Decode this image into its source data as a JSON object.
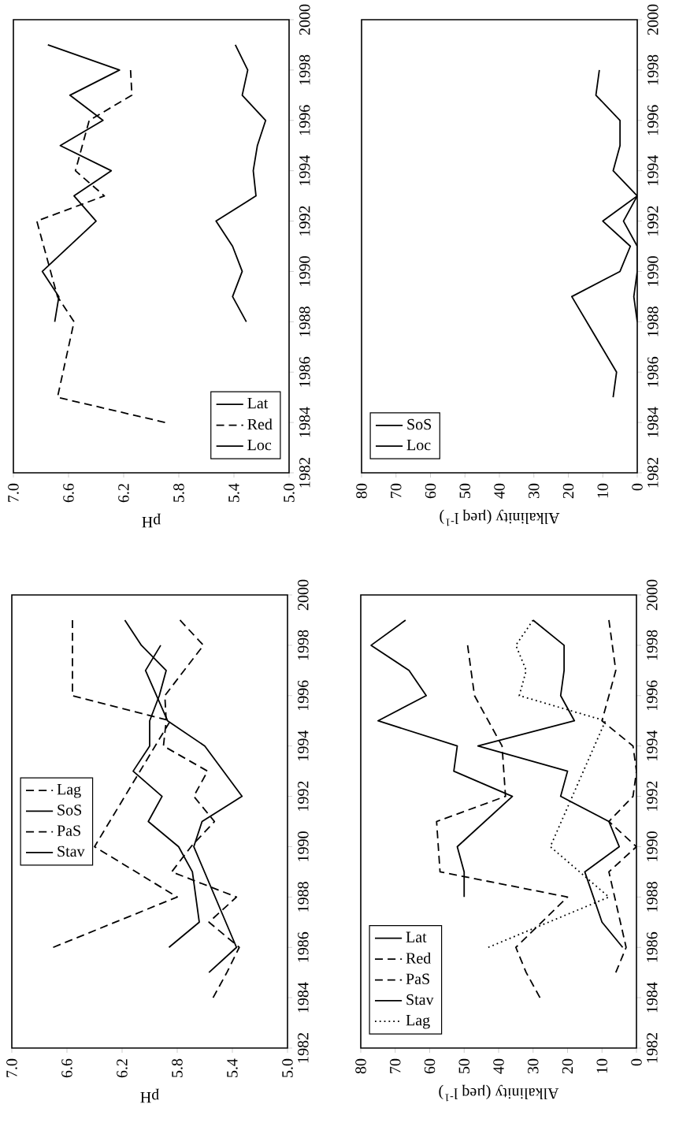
{
  "chart_data": [
    {
      "type": "line",
      "xlabel": "pH",
      "xlim": [
        7.0,
        5.0
      ],
      "xticks": [
        {
          "value": 7.0,
          "label": "7.0"
        },
        {
          "value": 6.6,
          "label": "6.6"
        },
        {
          "value": 6.2,
          "label": "6.2"
        },
        {
          "value": 5.8,
          "label": "5.8"
        },
        {
          "value": 5.4,
          "label": "5.4"
        },
        {
          "value": 5.0,
          "label": "5.0"
        }
      ],
      "ylim": [
        1982,
        2000
      ],
      "yticks": [
        {
          "value": 1982,
          "label": "1982"
        },
        {
          "value": 1984,
          "label": "1984"
        },
        {
          "value": 1986,
          "label": "1986"
        },
        {
          "value": 1988,
          "label": "1988"
        },
        {
          "value": 1990,
          "label": "1990"
        },
        {
          "value": 1992,
          "label": "1992"
        },
        {
          "value": 1994,
          "label": "1994"
        },
        {
          "value": 1996,
          "label": "1996"
        },
        {
          "value": 1998,
          "label": "1998"
        },
        {
          "value": 2000,
          "label": "2000"
        }
      ],
      "grid": false,
      "legend": "bottom right",
      "marker": "none",
      "series": [
        {
          "name": "Lat",
          "color": "#000000",
          "line_style": "solid",
          "x": [
            6.7,
            6.67,
            6.79,
            6.4,
            6.56,
            6.29,
            6.66,
            6.35,
            6.59,
            6.23,
            6.75
          ],
          "values": [
            1988,
            1989,
            1990,
            1992,
            1993,
            1994,
            1995,
            1996,
            1997,
            1998,
            1999
          ]
        },
        {
          "name": "Red",
          "color": "#000000",
          "line_style": "dashed",
          "x": [
            5.9,
            6.68,
            6.56,
            6.68,
            6.83,
            6.34,
            6.55,
            6.5,
            6.45,
            6.14,
            6.15
          ],
          "values": [
            1984,
            1985,
            1988,
            1989,
            1992,
            1993,
            1994,
            1995,
            1996,
            1997,
            1998
          ]
        },
        {
          "name": "Loc",
          "color": "#000000",
          "line_style": "solid",
          "x": [
            5.31,
            5.41,
            5.34,
            5.41,
            5.53,
            5.24,
            5.26,
            5.23,
            5.17,
            5.34,
            5.3,
            5.39
          ],
          "values": [
            1988,
            1989,
            1990,
            1991,
            1992,
            1993,
            1994,
            1995,
            1996,
            1997,
            1998,
            1999
          ]
        }
      ]
    },
    {
      "type": "line",
      "xlabel": "Alkalinity (µeq l$^{-1}$)",
      "xlim": [
        80,
        0
      ],
      "xticks": [
        {
          "value": 80,
          "label": "80"
        },
        {
          "value": 70,
          "label": "70"
        },
        {
          "value": 60,
          "label": "60"
        },
        {
          "value": 50,
          "label": "50"
        },
        {
          "value": 40,
          "label": "40"
        },
        {
          "value": 30,
          "label": "30"
        },
        {
          "value": 20,
          "label": "20"
        },
        {
          "value": 10,
          "label": "10"
        },
        {
          "value": 0,
          "label": "0"
        }
      ],
      "ylim": [
        1982,
        2000
      ],
      "yticks": [
        {
          "value": 1982,
          "label": "1982"
        },
        {
          "value": 1984,
          "label": "1984"
        },
        {
          "value": 1986,
          "label": "1986"
        },
        {
          "value": 1988,
          "label": "1988"
        },
        {
          "value": 1990,
          "label": "1990"
        },
        {
          "value": 1992,
          "label": "1992"
        },
        {
          "value": 1994,
          "label": "1994"
        },
        {
          "value": 1996,
          "label": "1996"
        },
        {
          "value": 1998,
          "label": "1998"
        },
        {
          "value": 2000,
          "label": "2000"
        }
      ],
      "grid": false,
      "legend": "bottom left",
      "marker": "none",
      "series": [
        {
          "name": "SoS",
          "color": "#000000",
          "line_style": "solid",
          "x": [
            7,
            6,
            19,
            5,
            2,
            10,
            0,
            7,
            5,
            5,
            12,
            11
          ],
          "values": [
            1985,
            1986,
            1989,
            1990,
            1991,
            1992,
            1993,
            1994,
            1995,
            1996,
            1997,
            1998
          ]
        },
        {
          "name": "Loc",
          "color": "#000000",
          "line_style": "solid",
          "x": [
            0,
            1,
            0,
            0,
            4,
            0
          ],
          "values": [
            1988,
            1989,
            1990,
            1991,
            1992,
            1993
          ]
        }
      ]
    },
    {
      "type": "line",
      "xlabel": "pH",
      "xlim": [
        7.0,
        5.0
      ],
      "xticks": [
        {
          "value": 7.0,
          "label": "7.0"
        },
        {
          "value": 6.6,
          "label": "6.6"
        },
        {
          "value": 6.2,
          "label": "6.2"
        },
        {
          "value": 5.8,
          "label": "5.8"
        },
        {
          "value": 5.4,
          "label": "5.4"
        },
        {
          "value": 5.0,
          "label": "5.0"
        }
      ],
      "ylim": [
        1982,
        2000
      ],
      "yticks": [
        {
          "value": 1982,
          "label": "1982"
        },
        {
          "value": 1984,
          "label": "1984"
        },
        {
          "value": 1986,
          "label": "1986"
        },
        {
          "value": 1988,
          "label": "1988"
        },
        {
          "value": 1990,
          "label": "1990"
        },
        {
          "value": 1992,
          "label": "1992"
        },
        {
          "value": 1994,
          "label": "1994"
        },
        {
          "value": 1996,
          "label": "1996"
        },
        {
          "value": 1998,
          "label": "1998"
        },
        {
          "value": 2000,
          "label": "2000"
        }
      ],
      "grid": false,
      "legend": "left",
      "marker": "none",
      "series": [
        {
          "name": "Lag",
          "color": "#000000",
          "line_style": "dashed",
          "x": [
            6.7,
            5.8,
            6.4,
            5.85,
            6.56,
            6.56
          ],
          "values": [
            1986,
            1988,
            1990,
            1995,
            1996,
            1999
          ]
        },
        {
          "name": "SoS",
          "color": "#000000",
          "line_style": "solid",
          "x": [
            5.57,
            5.37,
            5.68,
            5.62,
            5.33,
            5.6,
            5.87,
            6.03,
            5.92
          ],
          "values": [
            1985,
            1986,
            1990,
            1991,
            1992,
            1994,
            1995,
            1997,
            1998
          ]
        },
        {
          "name": "PaS",
          "color": "#000000",
          "line_style": "dashed",
          "x": [
            5.54,
            5.44,
            5.35,
            5.57,
            5.37,
            5.84,
            5.7,
            5.53,
            5.68,
            5.58,
            5.9,
            5.88,
            5.89,
            5.61,
            5.78
          ],
          "values": [
            1984,
            1985,
            1986,
            1987,
            1988,
            1989,
            1990,
            1991,
            1992,
            1993,
            1994,
            1995,
            1996,
            1998,
            1999
          ]
        },
        {
          "name": "Stav",
          "color": "#000000",
          "line_style": "solid",
          "x": [
            5.86,
            5.64,
            5.69,
            5.79,
            6.01,
            5.91,
            6.12,
            6.0,
            6.0,
            5.93,
            5.88,
            6.06,
            6.18
          ],
          "values": [
            1986,
            1987,
            1989,
            1990,
            1991,
            1992,
            1993,
            1994,
            1995,
            1996,
            1997,
            1998,
            1999
          ]
        }
      ]
    },
    {
      "type": "line",
      "xlabel": "Alkalinity (µeq l$^{-1}$)",
      "xlim": [
        80,
        0
      ],
      "xticks": [
        {
          "value": 80,
          "label": "80"
        },
        {
          "value": 70,
          "label": "70"
        },
        {
          "value": 60,
          "label": "60"
        },
        {
          "value": 50,
          "label": "50"
        },
        {
          "value": 40,
          "label": "40"
        },
        {
          "value": 30,
          "label": "30"
        },
        {
          "value": 20,
          "label": "20"
        },
        {
          "value": 10,
          "label": "10"
        },
        {
          "value": 0,
          "label": "0"
        }
      ],
      "ylim": [
        1982,
        2000
      ],
      "yticks": [
        {
          "value": 1982,
          "label": "1982"
        },
        {
          "value": 1984,
          "label": "1984"
        },
        {
          "value": 1986,
          "label": "1986"
        },
        {
          "value": 1988,
          "label": "1988"
        },
        {
          "value": 1990,
          "label": "1990"
        },
        {
          "value": 1992,
          "label": "1992"
        },
        {
          "value": 1994,
          "label": "1994"
        },
        {
          "value": 1996,
          "label": "1996"
        },
        {
          "value": 1998,
          "label": "1998"
        },
        {
          "value": 2000,
          "label": "2000"
        }
      ],
      "grid": false,
      "legend": "bottom left",
      "marker": "none",
      "series": [
        {
          "name": "Lat",
          "color": "#000000",
          "line_style": "solid",
          "x": [
            50,
            50,
            52,
            36,
            53,
            52,
            75,
            61,
            66,
            77,
            67
          ],
          "values": [
            1988,
            1989,
            1990,
            1992,
            1993,
            1994,
            1995,
            1996,
            1997,
            1998,
            1999
          ]
        },
        {
          "name": "Red",
          "color": "#000000",
          "line_style": "dashed",
          "x": [
            28,
            32,
            35,
            20,
            57,
            58,
            38,
            39,
            47,
            49
          ],
          "values": [
            1984,
            1985,
            1986,
            1988,
            1989,
            1991,
            1992,
            1994,
            1996,
            1998
          ]
        },
        {
          "name": "PaS",
          "color": "#000000",
          "line_style": "dashed",
          "x": [
            6,
            3,
            8,
            0,
            8,
            1,
            0,
            1,
            10,
            6,
            8
          ],
          "values": [
            1985,
            1986,
            1989,
            1990,
            1991,
            1992,
            1993,
            1994,
            1995,
            1997,
            1999
          ]
        },
        {
          "name": "Stav",
          "color": "#000000",
          "line_style": "solid",
          "x": [
            4,
            10,
            15,
            5,
            8,
            22,
            20,
            46,
            18,
            22,
            21,
            21,
            30
          ],
          "values": [
            1986,
            1987,
            1989,
            1990,
            1991,
            1992,
            1993,
            1994,
            1995,
            1996,
            1997,
            1998,
            1999
          ]
        },
        {
          "name": "Lag",
          "color": "#000000",
          "line_style": "dotted",
          "x": [
            43,
            8,
            25,
            9,
            34,
            32,
            35,
            30
          ],
          "values": [
            1986,
            1988,
            1990,
            1995,
            1996,
            1997,
            1998,
            1999
          ]
        }
      ]
    }
  ]
}
